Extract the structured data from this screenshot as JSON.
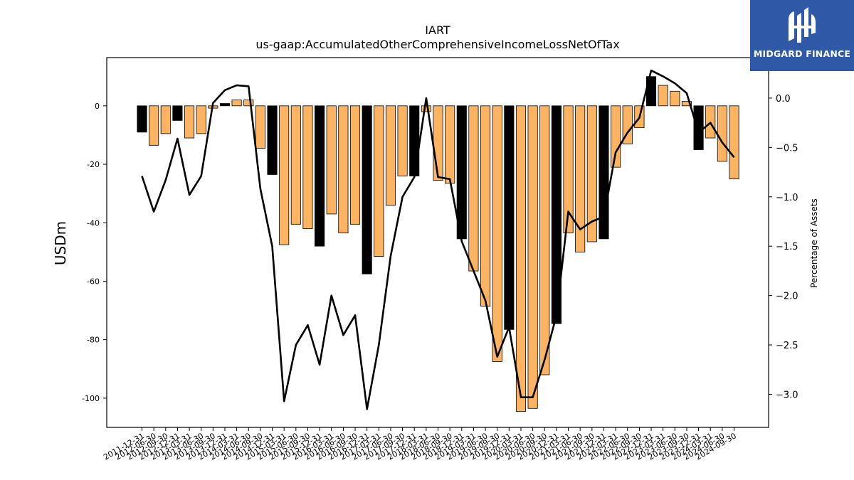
{
  "logo": {
    "text": "MIDGARD FINANCE",
    "background": "#2f59a6"
  },
  "colors": {
    "bar_q4": "#000000",
    "bar_other": "#fdb462",
    "line": "#000000"
  },
  "chart_data": {
    "type": "bar",
    "title": "IART",
    "subtitle": "us-gaap:AccumulatedOtherComprehensiveIncomeLossNetOfTax",
    "ylabel": "USDm",
    "y2label": "Percentage of Assets",
    "ylim": [
      -110,
      16.5
    ],
    "y2lim": [
      -3.335,
      0.41
    ],
    "yticks": [
      0,
      -20,
      -40,
      -60,
      -80,
      -100
    ],
    "y2ticks": [
      0.0,
      -0.5,
      -1.0,
      -1.5,
      -2.0,
      -2.5,
      -3.0
    ],
    "y2ticklabels": [
      "0.0",
      "−0.5",
      "−1.0",
      "−1.5",
      "−2.0",
      "−2.5",
      "−3.0"
    ],
    "grid": false,
    "legend": "none",
    "categories": [
      "2011-12-31",
      "2012-06-30",
      "2012-09-30",
      "2012-12-31",
      "2013-03-31",
      "2013-06-30",
      "2013-09-30",
      "2013-12-31",
      "2014-03-31",
      "2014-06-30",
      "2014-09-30",
      "2014-12-31",
      "2015-03-31",
      "2015-06-30",
      "2015-09-30",
      "2015-12-31",
      "2016-03-31",
      "2016-06-30",
      "2016-09-30",
      "2016-12-31",
      "2017-03-31",
      "2017-06-30",
      "2017-09-30",
      "2017-12-31",
      "2018-03-31",
      "2018-06-30",
      "2018-09-30",
      "2018-12-31",
      "2019-03-31",
      "2019-06-30",
      "2019-09-30",
      "2019-12-31",
      "2020-03-31",
      "2020-06-30",
      "2020-09-30",
      "2020-12-31",
      "2021-03-31",
      "2021-06-30",
      "2021-09-30",
      "2021-12-31",
      "2022-03-31",
      "2022-06-30",
      "2022-09-30",
      "2022-12-31",
      "2023-03-31",
      "2023-06-30",
      "2023-09-30",
      "2023-12-31",
      "2024-03-31",
      "2024-06-30",
      "2024-09-30"
    ],
    "series": [
      {
        "type": "bar",
        "values": [
          -9,
          -13.5,
          -9.5,
          -5,
          -11,
          -9.5,
          -0.8,
          0.8,
          2,
          2,
          -14.5,
          -23.5,
          -47.5,
          -40.5,
          -42,
          -48,
          -37,
          -43.5,
          -40.5,
          -57.5,
          -51.5,
          -34,
          -24,
          -24,
          -2,
          -25.5,
          -26.5,
          -45.5,
          -56.5,
          -68.5,
          -87.5,
          -76.5,
          -104.5,
          -103.5,
          -92,
          -74.5,
          -43.5,
          -50,
          -46.5,
          -45.5,
          -21,
          -13,
          -7.5,
          10,
          7,
          5,
          1.5,
          -15,
          -11,
          -19,
          -25
        ]
      },
      {
        "type": "line",
        "axis": "right",
        "values": [
          -0.79,
          -1.15,
          -0.83,
          -0.41,
          -0.98,
          -0.79,
          -0.05,
          0.08,
          0.13,
          0.12,
          -0.92,
          -1.5,
          -3.07,
          -2.5,
          -2.3,
          -2.7,
          -2.0,
          -2.4,
          -2.2,
          -3.15,
          -2.5,
          -1.6,
          -1.0,
          -0.8,
          0.0,
          -0.8,
          -0.82,
          -1.45,
          -1.75,
          -2.05,
          -2.62,
          -2.32,
          -3.03,
          -3.03,
          -2.65,
          -2.2,
          -1.15,
          -1.33,
          -1.25,
          -1.2,
          -0.55,
          -0.35,
          -0.2,
          0.28,
          0.22,
          0.15,
          0.05,
          -0.35,
          -0.25,
          -0.45,
          -0.6
        ]
      }
    ]
  }
}
